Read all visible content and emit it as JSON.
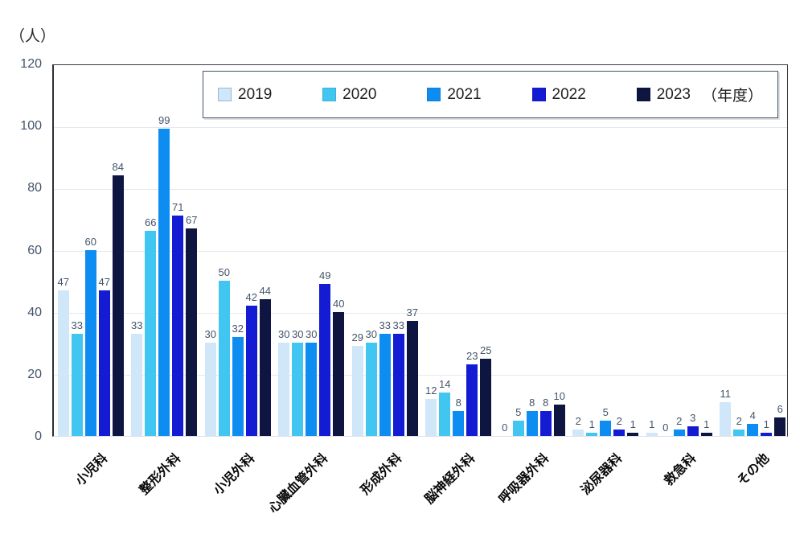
{
  "y_axis_unit": "（人）",
  "legend": {
    "suffix": "（年度）"
  },
  "chart_data": {
    "type": "bar",
    "title": "",
    "xlabel": "",
    "ylabel": "（人）",
    "ylim": [
      0,
      120
    ],
    "ytick_step": 20,
    "grid": true,
    "legend_position": "top",
    "categories": [
      "小児科",
      "整形外科",
      "小児外科",
      "心臓血管外科",
      "形成外科",
      "脳神経外科",
      "呼吸器外科",
      "泌尿器科",
      "救急科",
      "その他"
    ],
    "series": [
      {
        "name": "2019",
        "color": "#cfe7f8",
        "values": [
          47,
          33,
          30,
          30,
          29,
          12,
          0,
          2,
          1,
          11
        ]
      },
      {
        "name": "2020",
        "color": "#41c6f2",
        "values": [
          33,
          66,
          50,
          30,
          30,
          14,
          5,
          1,
          0,
          2
        ]
      },
      {
        "name": "2021",
        "color": "#0d8df2",
        "values": [
          60,
          99,
          32,
          30,
          33,
          8,
          8,
          5,
          2,
          4
        ]
      },
      {
        "name": "2022",
        "color": "#131cd3",
        "values": [
          47,
          71,
          42,
          49,
          33,
          23,
          8,
          2,
          3,
          1
        ]
      },
      {
        "name": "2023",
        "color": "#0d1540",
        "values": [
          84,
          67,
          44,
          40,
          37,
          25,
          10,
          1,
          1,
          6
        ]
      }
    ],
    "label_color": "#44546a",
    "tick_color": "#44546a"
  }
}
